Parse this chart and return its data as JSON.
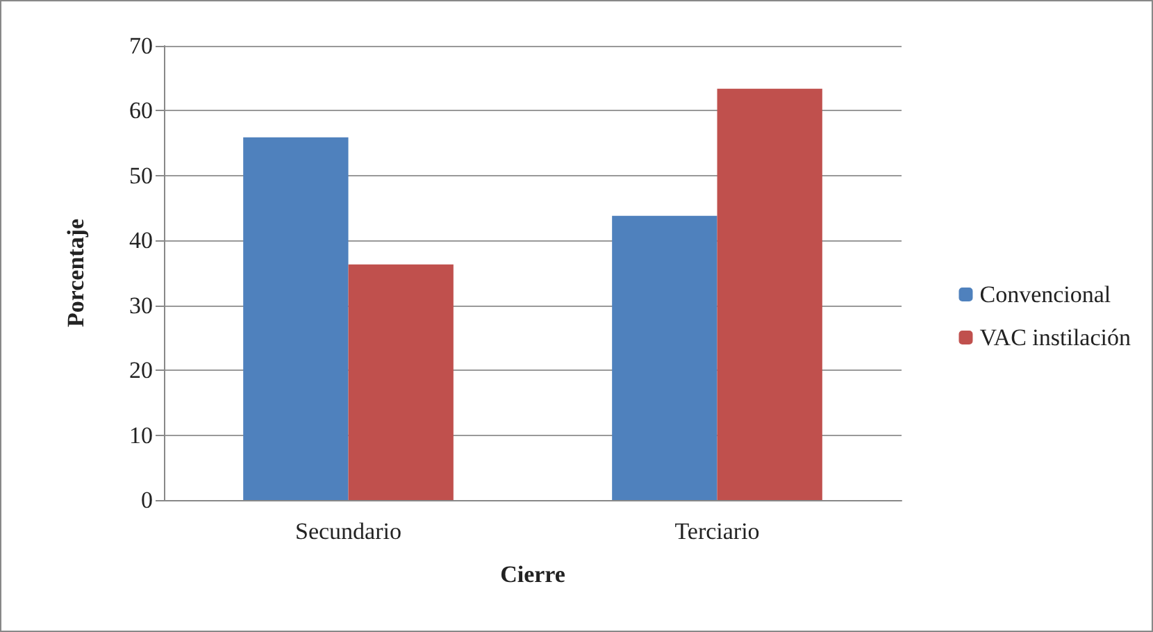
{
  "chart_data": {
    "type": "bar",
    "xlabel": "Cierre",
    "ylabel": "Porcentaje",
    "categories": [
      "Secundario",
      "Terciario"
    ],
    "series": [
      {
        "name": "Convencional",
        "color": "#4f81bd",
        "values": [
          55.9,
          43.8
        ]
      },
      {
        "name": "VAC instilación",
        "color": "#c0504d",
        "values": [
          36.3,
          63.4
        ]
      }
    ],
    "ylim": [
      0,
      70
    ],
    "yticks": [
      0,
      10,
      20,
      30,
      40,
      50,
      60,
      70
    ],
    "grid": "y",
    "legend": "right"
  }
}
